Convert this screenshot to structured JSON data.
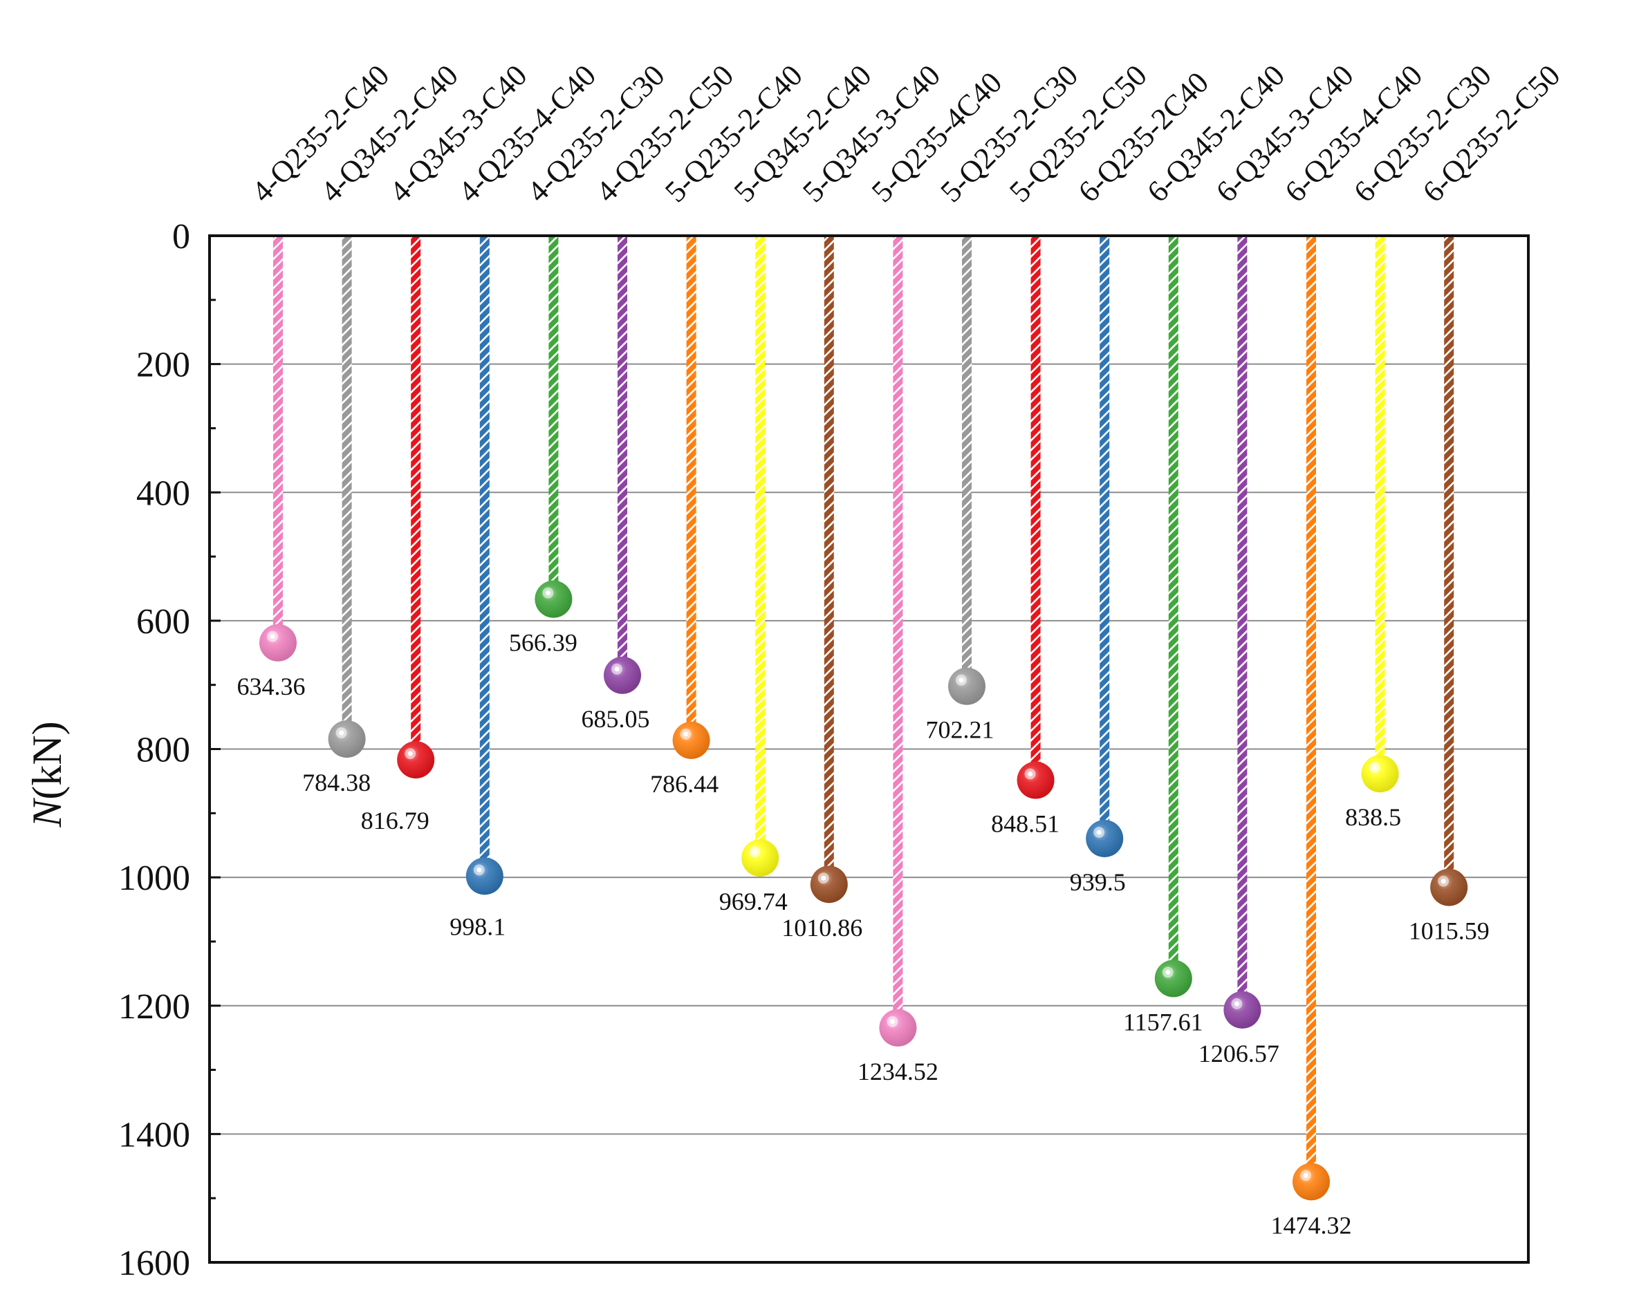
{
  "chart_data": {
    "type": "lollipop",
    "ylabel_italic": "N",
    "ylabel_unit": "(kN)",
    "ylim": [
      0,
      1600
    ],
    "y_inverted": true,
    "yticks": [
      0,
      200,
      400,
      600,
      800,
      1000,
      1200,
      1400,
      1600
    ],
    "grid": "horizontal",
    "categories": [
      "4-Q235-2-C40",
      "4-Q345-2-C40",
      "4-Q345-3-C40",
      "4-Q235-4-C40",
      "4-Q235-2-C30",
      "4-Q235-2-C50",
      "5-Q235-2-C40",
      "5-Q345-2-C40",
      "5-Q345-3-C40",
      "5-Q235-4C40",
      "5-Q235-2-C30",
      "5-Q235-2-C50",
      "6-Q235-2C40",
      "6-Q345-2-C40",
      "6-Q345-3-C40",
      "6-Q235-4-C40",
      "6-Q235-2-C30",
      "6-Q235-2-C50"
    ],
    "values": [
      634.36,
      784.38,
      816.79,
      998.1,
      566.39,
      685.05,
      786.44,
      969.74,
      1010.86,
      1234.52,
      702.21,
      848.51,
      939.5,
      1157.61,
      1206.57,
      1474.32,
      838.5,
      1015.59
    ],
    "value_labels": [
      "634.36",
      "784.38",
      "816.79",
      "998.1",
      "566.39",
      "685.05",
      "786.44",
      "969.74",
      "1010.86",
      "1234.52",
      "702.21",
      "848.51",
      "939.5",
      "1157.61",
      "1206.57",
      "1474.32",
      "838.5",
      "1015.59"
    ],
    "colors": [
      "#f080c0",
      "#999999",
      "#e8141c",
      "#2f75b5",
      "#40a83c",
      "#8e44a4",
      "#ff7f0e",
      "#ffff14",
      "#9b4f26",
      "#f080c0",
      "#999999",
      "#e8141c",
      "#2f75b5",
      "#40a83c",
      "#8e44a4",
      "#ff7f0e",
      "#ffff14",
      "#9b4f26"
    ]
  }
}
